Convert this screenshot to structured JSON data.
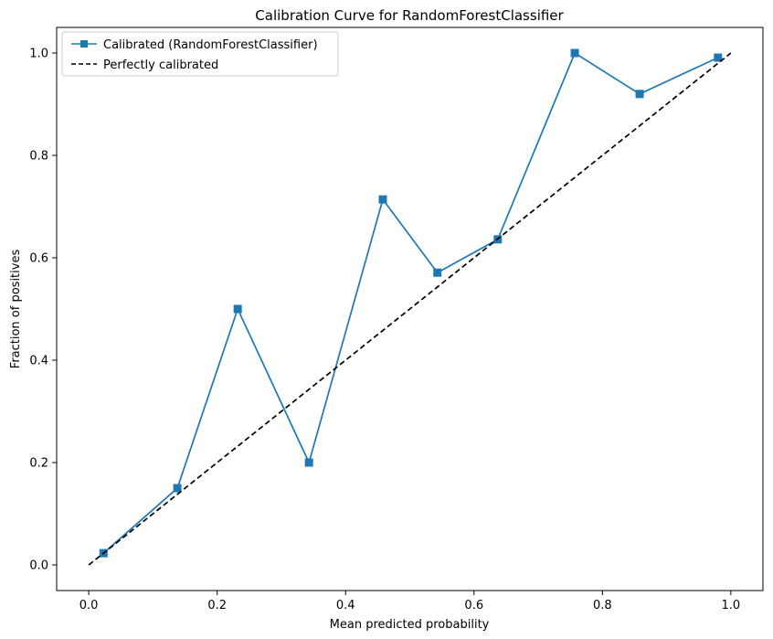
{
  "chart_data": {
    "type": "line",
    "title": "Calibration Curve for RandomForestClassifier",
    "xlabel": "Mean predicted probability",
    "ylabel": "Fraction of positives",
    "xlim": [
      -0.05,
      1.05
    ],
    "ylim": [
      -0.05,
      1.05
    ],
    "xticks": [
      0.0,
      0.2,
      0.4,
      0.6,
      0.8,
      1.0
    ],
    "yticks": [
      0.0,
      0.2,
      0.4,
      0.6,
      0.8,
      1.0
    ],
    "xtick_labels": [
      "0.0",
      "0.2",
      "0.4",
      "0.6",
      "0.8",
      "1.0"
    ],
    "ytick_labels": [
      "0.0",
      "0.2",
      "0.4",
      "0.6",
      "0.8",
      "1.0"
    ],
    "grid": false,
    "legend_position": "upper-left",
    "series": [
      {
        "name": "Calibrated (RandomForestClassifier)",
        "color": "#1f77b4",
        "style": "solid",
        "marker": "square",
        "x": [
          0.023,
          0.138,
          0.232,
          0.343,
          0.458,
          0.543,
          0.637,
          0.757,
          0.858,
          0.98
        ],
        "y": [
          0.023,
          0.15,
          0.5,
          0.2,
          0.714,
          0.571,
          0.636,
          1.0,
          0.92,
          0.991
        ]
      },
      {
        "name": "Perfectly calibrated",
        "color": "#000000",
        "style": "dashed",
        "marker": "none",
        "x": [
          0.0,
          1.0
        ],
        "y": [
          0.0,
          1.0
        ]
      }
    ]
  }
}
